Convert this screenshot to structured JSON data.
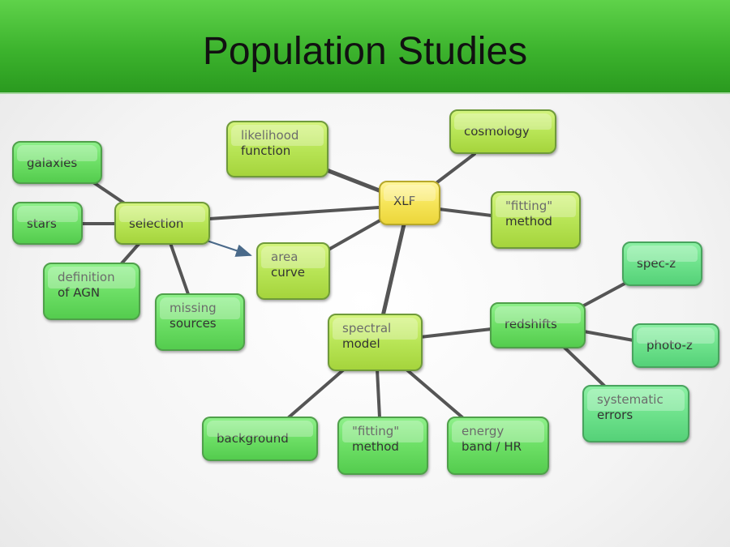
{
  "title": "Population Studies",
  "nodes": {
    "xlf": "XLF",
    "likelihood": "likelihood\nfunction",
    "cosmology": "cosmology",
    "fitting_top": "\"fitting\"\nmethod",
    "selection": "selection",
    "galaxies": "galaxies",
    "stars": "stars",
    "agn": "definition\nof AGN",
    "missing": "missing\nsources",
    "area": "area\ncurve",
    "spectral": "spectral\nmodel",
    "redshifts": "redshifts",
    "specz": "spec-z",
    "photoz": "photo-z",
    "systematic": "systematic\nerrors",
    "background": "background",
    "fitting_bottom": "\"fitting\"\nmethod",
    "energy": "energy\nband / HR"
  },
  "colors": {
    "header": "#3cb32d",
    "lime_node": "#b8e556",
    "green_node": "#6ddf66",
    "teal_node": "#6ee28c",
    "center_node": "#f6e55a",
    "link": "#555555",
    "arrow": "#4a6a8a"
  }
}
